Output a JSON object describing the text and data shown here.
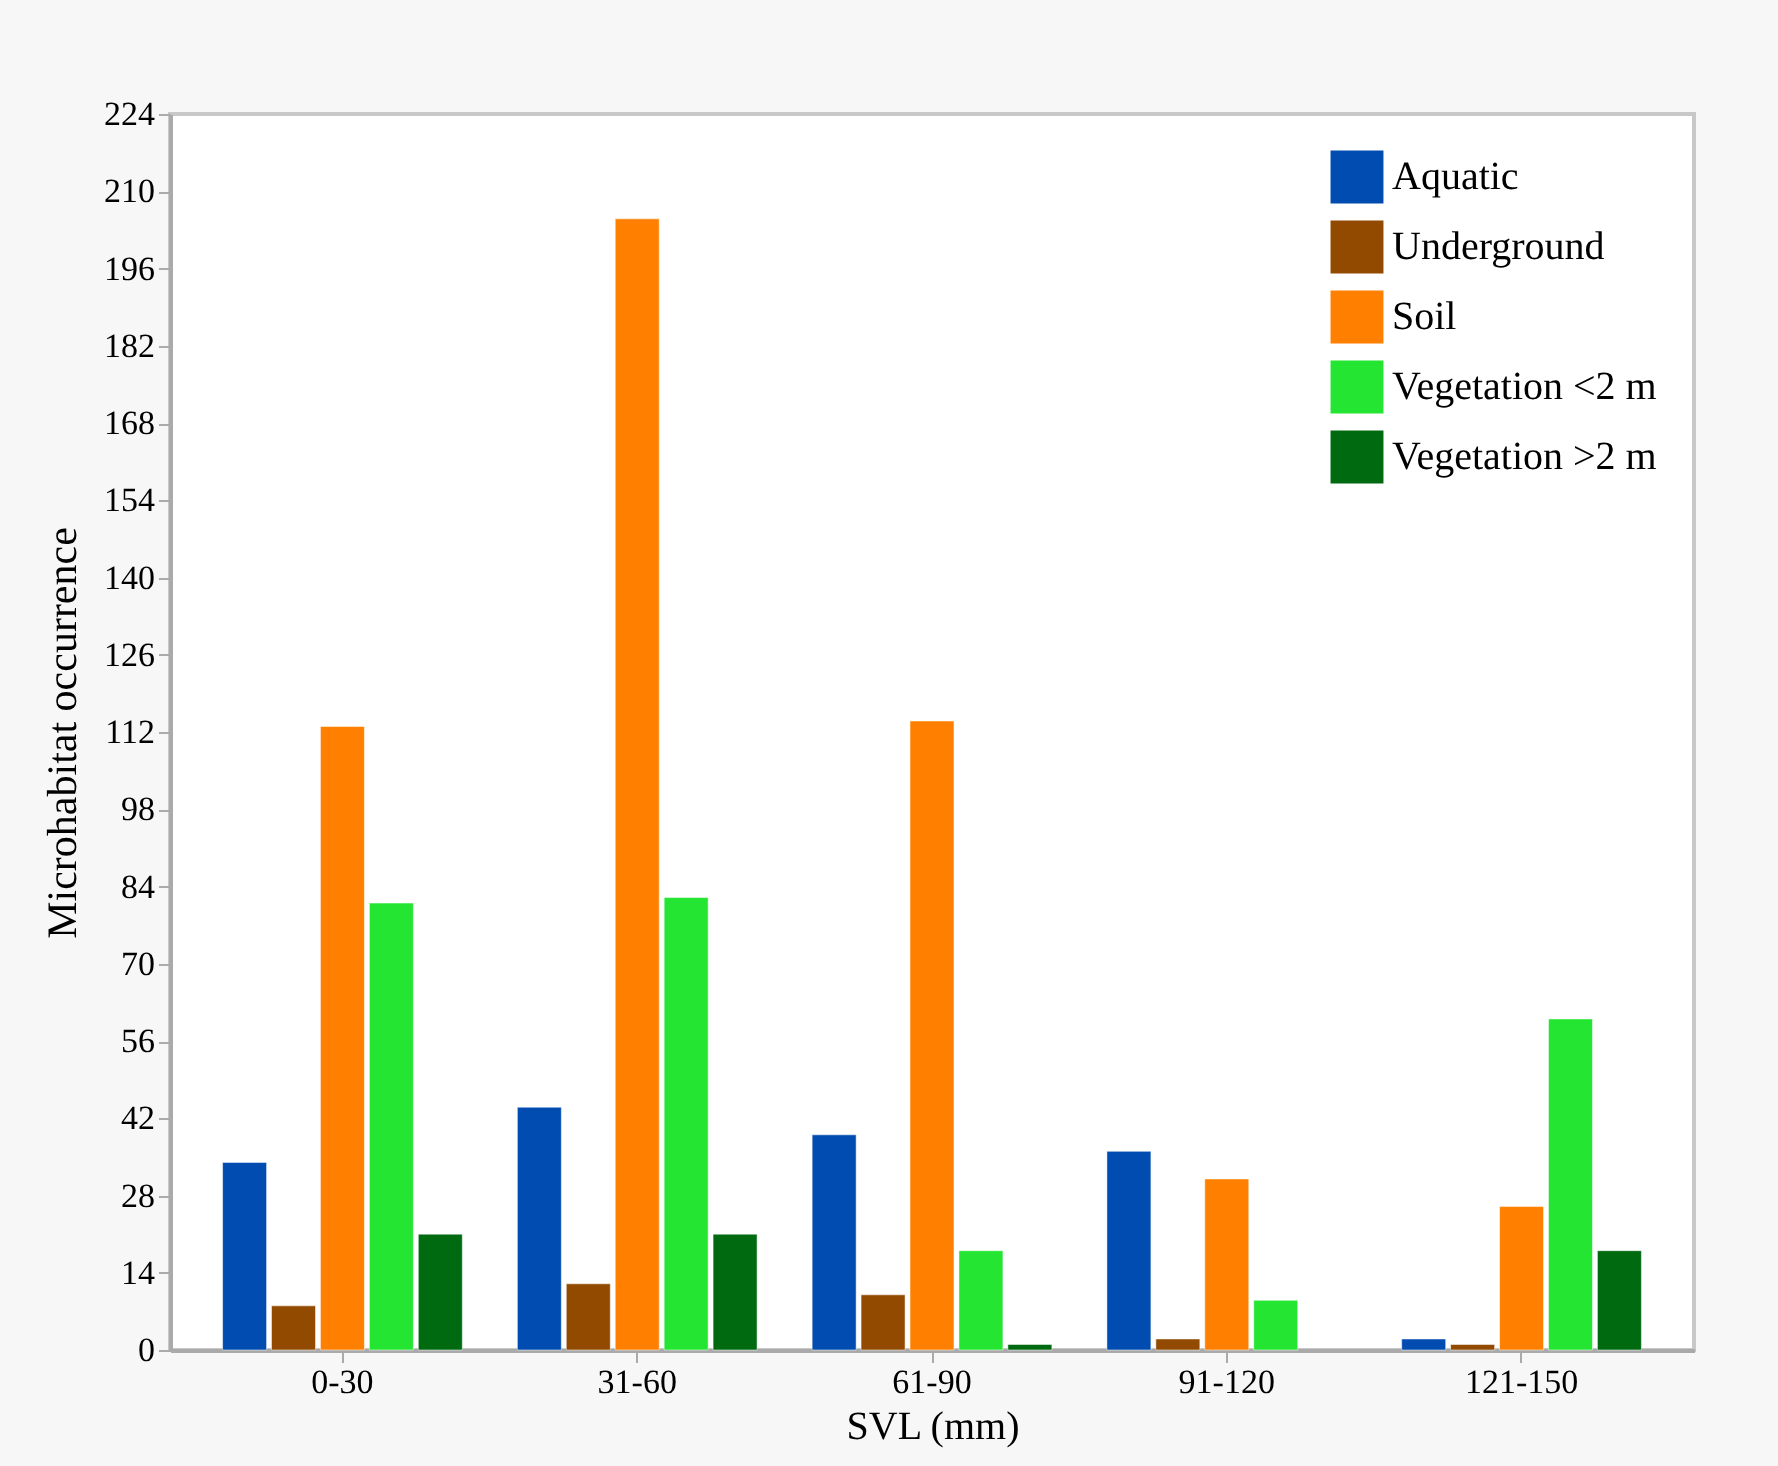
{
  "chart_data": {
    "type": "bar",
    "xlabel": "SVL (mm)",
    "ylabel": "Microhabitat occurrence",
    "categories": [
      "0-30",
      "31-60",
      "61-90",
      "91-120",
      "121-150"
    ],
    "series": [
      {
        "name": "Aquatic",
        "color": "#004cb0",
        "values": [
          34,
          44,
          39,
          36,
          2
        ]
      },
      {
        "name": "Underground",
        "color": "#924a00",
        "values": [
          8,
          12,
          10,
          2,
          1
        ]
      },
      {
        "name": "Soil",
        "color": "#ff8000",
        "values": [
          113,
          205,
          114,
          31,
          26
        ]
      },
      {
        "name": "Vegetation <2 m",
        "color": "#24e632",
        "values": [
          81,
          82,
          18,
          9,
          60
        ]
      },
      {
        "name": "Vegetation >2 m",
        "color": "#006a10",
        "values": [
          21,
          21,
          1,
          null,
          18
        ]
      }
    ],
    "ylim": [
      0,
      224
    ],
    "yticks": [
      0,
      14,
      28,
      42,
      56,
      70,
      84,
      98,
      112,
      126,
      140,
      154,
      168,
      182,
      196,
      210,
      224
    ],
    "grid": false,
    "legend": "top right"
  }
}
